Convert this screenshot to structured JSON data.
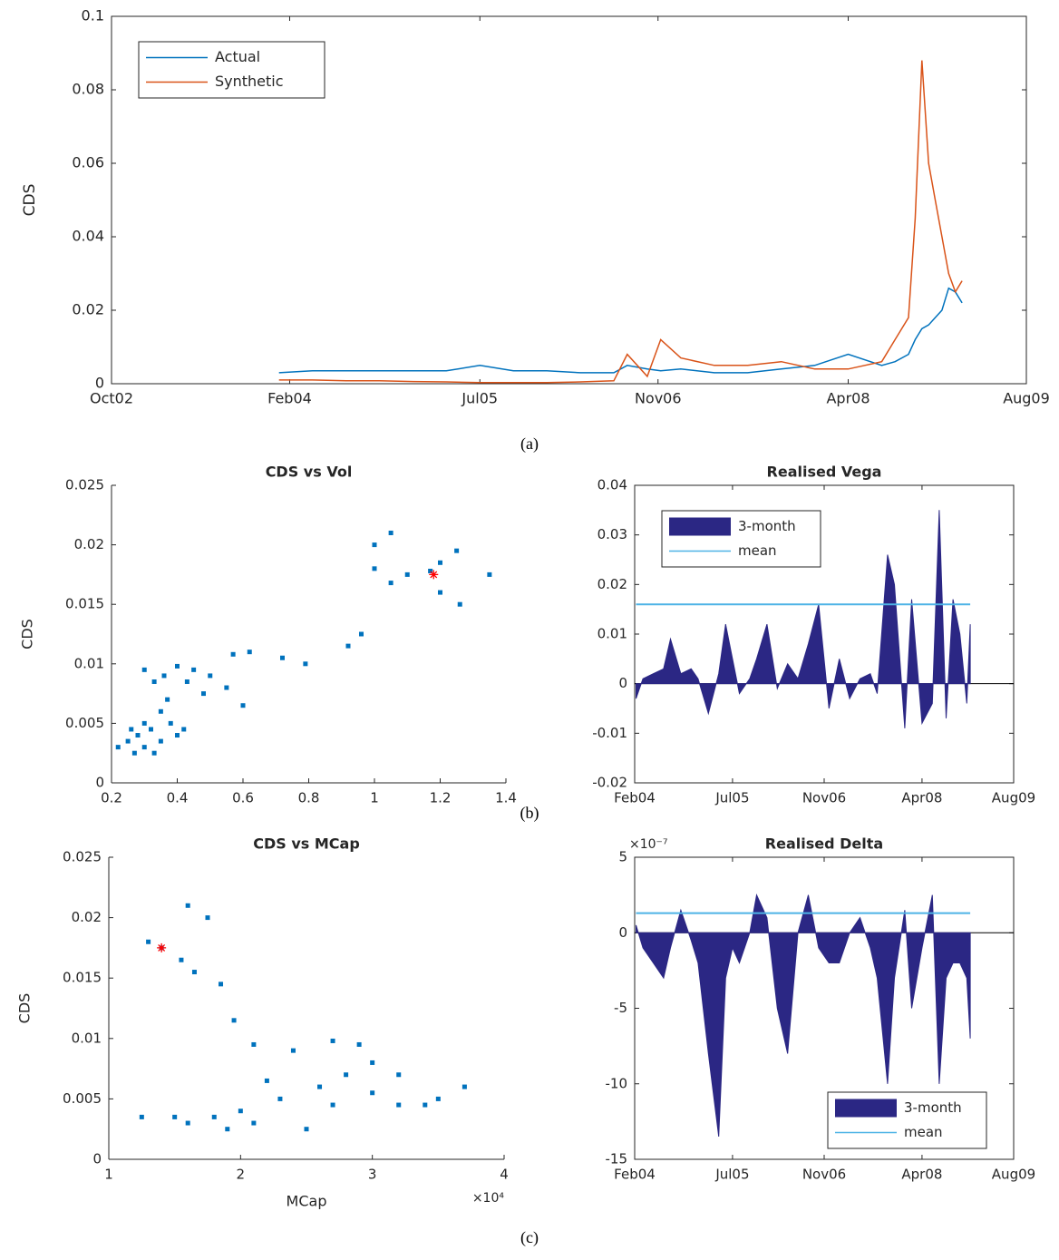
{
  "captions": [
    "(a)",
    "(b)",
    "(c)"
  ],
  "chart_data": [
    {
      "type": "line",
      "ylabel": "CDS",
      "xlim": [
        2002.75,
        2009.58
      ],
      "ylim": [
        0,
        0.1
      ],
      "xticks": [
        {
          "value": 2002.75,
          "label": "Oct02"
        },
        {
          "value": 2004.08,
          "label": "Feb04"
        },
        {
          "value": 2005.5,
          "label": "Jul05"
        },
        {
          "value": 2006.83,
          "label": "Nov06"
        },
        {
          "value": 2008.25,
          "label": "Apr08"
        },
        {
          "value": 2009.58,
          "label": "Aug09"
        }
      ],
      "yticks": [
        0,
        0.02,
        0.04,
        0.06,
        0.08,
        0.1
      ],
      "box": true,
      "legend": "upper left",
      "series": [
        {
          "name": "Actual",
          "color": "#0072bd",
          "x": [
            2004.0,
            2004.25,
            2004.5,
            2004.75,
            2005.0,
            2005.25,
            2005.5,
            2005.75,
            2006.0,
            2006.25,
            2006.5,
            2006.6,
            2006.75,
            2006.85,
            2007.0,
            2007.25,
            2007.5,
            2007.75,
            2008.0,
            2008.25,
            2008.5,
            2008.6,
            2008.7,
            2008.75,
            2008.8,
            2008.85,
            2008.9,
            2008.95,
            2009.0,
            2009.05,
            2009.1
          ],
          "values": [
            0.003,
            0.0035,
            0.0035,
            0.0035,
            0.0035,
            0.0035,
            0.005,
            0.0035,
            0.0035,
            0.003,
            0.003,
            0.005,
            0.004,
            0.0035,
            0.004,
            0.003,
            0.003,
            0.004,
            0.005,
            0.008,
            0.005,
            0.006,
            0.008,
            0.012,
            0.015,
            0.016,
            0.018,
            0.02,
            0.026,
            0.025,
            0.022
          ]
        },
        {
          "name": "Synthetic",
          "color": "#d95319",
          "x": [
            2004.0,
            2004.25,
            2004.5,
            2004.75,
            2005.0,
            2005.25,
            2005.5,
            2005.75,
            2006.0,
            2006.25,
            2006.5,
            2006.6,
            2006.75,
            2006.85,
            2007.0,
            2007.25,
            2007.5,
            2007.75,
            2008.0,
            2008.25,
            2008.5,
            2008.6,
            2008.7,
            2008.75,
            2008.8,
            2008.85,
            2008.9,
            2008.95,
            2009.0,
            2009.05,
            2009.1
          ],
          "values": [
            0.001,
            0.001,
            0.0008,
            0.0008,
            0.0006,
            0.0005,
            0.0003,
            0.0003,
            0.0003,
            0.0005,
            0.0008,
            0.008,
            0.002,
            0.012,
            0.007,
            0.005,
            0.005,
            0.006,
            0.004,
            0.004,
            0.006,
            0.012,
            0.018,
            0.045,
            0.088,
            0.06,
            0.05,
            0.04,
            0.03,
            0.025,
            0.028
          ]
        }
      ]
    },
    {
      "type": "scatter",
      "title": "CDS vs Vol",
      "ylabel": "CDS",
      "xlim": [
        0.2,
        1.4
      ],
      "ylim": [
        0,
        0.025
      ],
      "xticks": [
        0.2,
        0.4,
        0.6,
        0.8,
        1,
        1.2,
        1.4
      ],
      "yticks": [
        0,
        0.005,
        0.01,
        0.015,
        0.02,
        0.025
      ],
      "box": false,
      "series": [
        {
          "color": "#0072bd",
          "marker": "square",
          "x": [
            0.22,
            0.25,
            0.27,
            0.28,
            0.3,
            0.3,
            0.32,
            0.33,
            0.35,
            0.35,
            0.37,
            0.38,
            0.4,
            0.42,
            0.3,
            0.33,
            0.36,
            0.4,
            0.43,
            0.45,
            0.5,
            0.55,
            0.6,
            0.62,
            0.57,
            0.72,
            0.79,
            0.92,
            0.96,
            1.0,
            1.0,
            1.05,
            1.1,
            1.17,
            1.2,
            1.2,
            1.25,
            1.26,
            1.35,
            1.05,
            0.48,
            0.26
          ],
          "values": [
            0.003,
            0.0035,
            0.0025,
            0.004,
            0.003,
            0.005,
            0.0045,
            0.0025,
            0.006,
            0.0035,
            0.007,
            0.005,
            0.004,
            0.0045,
            0.0095,
            0.0085,
            0.009,
            0.0098,
            0.0085,
            0.0095,
            0.009,
            0.008,
            0.0065,
            0.011,
            0.0108,
            0.0105,
            0.01,
            0.0115,
            0.0125,
            0.018,
            0.02,
            0.021,
            0.0175,
            0.0178,
            0.0185,
            0.016,
            0.0195,
            0.015,
            0.0175,
            0.0168,
            0.0075,
            0.0045
          ]
        },
        {
          "color": "#ff0000",
          "marker": "star",
          "x": [
            1.18
          ],
          "values": [
            0.0175
          ]
        }
      ]
    },
    {
      "type": "area",
      "title": "Realised Vega",
      "xlim": [
        2004.08,
        2009.58
      ],
      "ylim": [
        -0.02,
        0.04
      ],
      "xticks": [
        {
          "value": 2004.08,
          "label": "Feb04"
        },
        {
          "value": 2005.5,
          "label": "Jul05"
        },
        {
          "value": 2006.83,
          "label": "Nov06"
        },
        {
          "value": 2008.25,
          "label": "Apr08"
        },
        {
          "value": 2009.58,
          "label": "Aug09"
        }
      ],
      "yticks": [
        -0.02,
        -0.01,
        0,
        0.01,
        0.02,
        0.03,
        0.04
      ],
      "box": true,
      "legend": "upper left",
      "series": [
        {
          "name": "3-month",
          "color": "#2b2784",
          "fill": true,
          "x": [
            2004.1,
            2004.2,
            2004.35,
            2004.5,
            2004.6,
            2004.75,
            2004.9,
            2005.0,
            2005.15,
            2005.3,
            2005.4,
            2005.5,
            2005.6,
            2005.75,
            2005.85,
            2006.0,
            2006.15,
            2006.3,
            2006.45,
            2006.6,
            2006.75,
            2006.9,
            2007.05,
            2007.2,
            2007.35,
            2007.5,
            2007.6,
            2007.75,
            2007.85,
            2008.0,
            2008.1,
            2008.25,
            2008.4,
            2008.5,
            2008.6,
            2008.7,
            2008.8,
            2008.9,
            2008.95
          ],
          "values": [
            -0.003,
            0.001,
            0.002,
            0.003,
            0.009,
            0.002,
            0.003,
            0.001,
            -0.006,
            0.002,
            0.012,
            0.005,
            -0.002,
            0.001,
            0.005,
            0.012,
            -0.001,
            0.004,
            0.001,
            0.008,
            0.016,
            -0.005,
            0.005,
            -0.003,
            0.001,
            0.002,
            -0.002,
            0.026,
            0.02,
            -0.009,
            0.017,
            -0.008,
            -0.004,
            0.035,
            -0.007,
            0.017,
            0.01,
            -0.004,
            0.012
          ]
        },
        {
          "name": "mean",
          "color": "#4db3e6",
          "fill": false,
          "x": [
            2004.1,
            2008.95
          ],
          "values": [
            0.016,
            0.016
          ]
        }
      ]
    },
    {
      "type": "scatter",
      "title": "CDS vs MCap",
      "ylabel": "CDS",
      "xlabel": "MCap",
      "x_multiplier": "×10⁴",
      "xlim": [
        1,
        4
      ],
      "ylim": [
        0,
        0.025
      ],
      "xticks": [
        1,
        2,
        3,
        4
      ],
      "yticks": [
        0,
        0.005,
        0.01,
        0.015,
        0.02,
        0.025
      ],
      "box": false,
      "series": [
        {
          "color": "#0072bd",
          "marker": "square",
          "x": [
            1.3,
            1.4,
            1.55,
            1.6,
            1.75,
            1.65,
            1.85,
            1.95,
            2.1,
            2.4,
            2.7,
            2.9,
            3.0,
            2.8,
            3.2,
            3.5,
            3.7,
            3.4,
            3.0,
            2.6,
            2.3,
            2.0,
            1.8,
            1.5,
            1.25,
            1.6,
            2.1,
            2.5,
            2.7,
            3.2,
            2.2,
            1.9
          ],
          "values": [
            0.018,
            0.0175,
            0.0165,
            0.021,
            0.02,
            0.0155,
            0.0145,
            0.0115,
            0.0095,
            0.009,
            0.0098,
            0.0095,
            0.008,
            0.007,
            0.007,
            0.005,
            0.006,
            0.0045,
            0.0055,
            0.006,
            0.005,
            0.004,
            0.0035,
            0.0035,
            0.0035,
            0.003,
            0.003,
            0.0025,
            0.0045,
            0.0045,
            0.0065,
            0.0025
          ]
        },
        {
          "color": "#ff0000",
          "marker": "star",
          "x": [
            1.4
          ],
          "values": [
            0.0175
          ]
        }
      ]
    },
    {
      "type": "area",
      "title": "Realised Delta",
      "y_multiplier": "×10⁻⁷",
      "xlim": [
        2004.08,
        2009.58
      ],
      "ylim": [
        -15,
        5
      ],
      "xticks": [
        {
          "value": 2004.08,
          "label": "Feb04"
        },
        {
          "value": 2005.5,
          "label": "Jul05"
        },
        {
          "value": 2006.83,
          "label": "Nov06"
        },
        {
          "value": 2008.25,
          "label": "Apr08"
        },
        {
          "value": 2009.58,
          "label": "Aug09"
        }
      ],
      "yticks": [
        -15,
        -10,
        -5,
        0,
        5
      ],
      "box": true,
      "legend": "lower right",
      "series": [
        {
          "name": "3-month",
          "color": "#2b2784",
          "fill": true,
          "x": [
            2004.1,
            2004.2,
            2004.35,
            2004.5,
            2004.6,
            2004.75,
            2004.9,
            2005.0,
            2005.15,
            2005.3,
            2005.4,
            2005.5,
            2005.6,
            2005.75,
            2005.85,
            2006.0,
            2006.15,
            2006.3,
            2006.45,
            2006.6,
            2006.75,
            2006.9,
            2007.05,
            2007.2,
            2007.35,
            2007.5,
            2007.6,
            2007.75,
            2007.85,
            2008.0,
            2008.1,
            2008.25,
            2008.4,
            2008.5,
            2008.6,
            2008.7,
            2008.8,
            2008.9,
            2008.95
          ],
          "values": [
            0.5,
            -1,
            -2,
            -3,
            -1,
            1.5,
            -0.5,
            -2,
            -8,
            -13.5,
            -3,
            -1,
            -2,
            0,
            2.5,
            1,
            -5,
            -8,
            0,
            2.5,
            -1,
            -2,
            -2,
            0,
            1,
            -1,
            -3,
            -10,
            -3,
            1.5,
            -5,
            -1,
            2.5,
            -10,
            -3,
            -2,
            -2,
            -3,
            -7
          ]
        },
        {
          "name": "mean",
          "color": "#4db3e6",
          "fill": false,
          "x": [
            2004.1,
            2008.95
          ],
          "values": [
            1.3,
            1.3
          ]
        }
      ]
    }
  ]
}
